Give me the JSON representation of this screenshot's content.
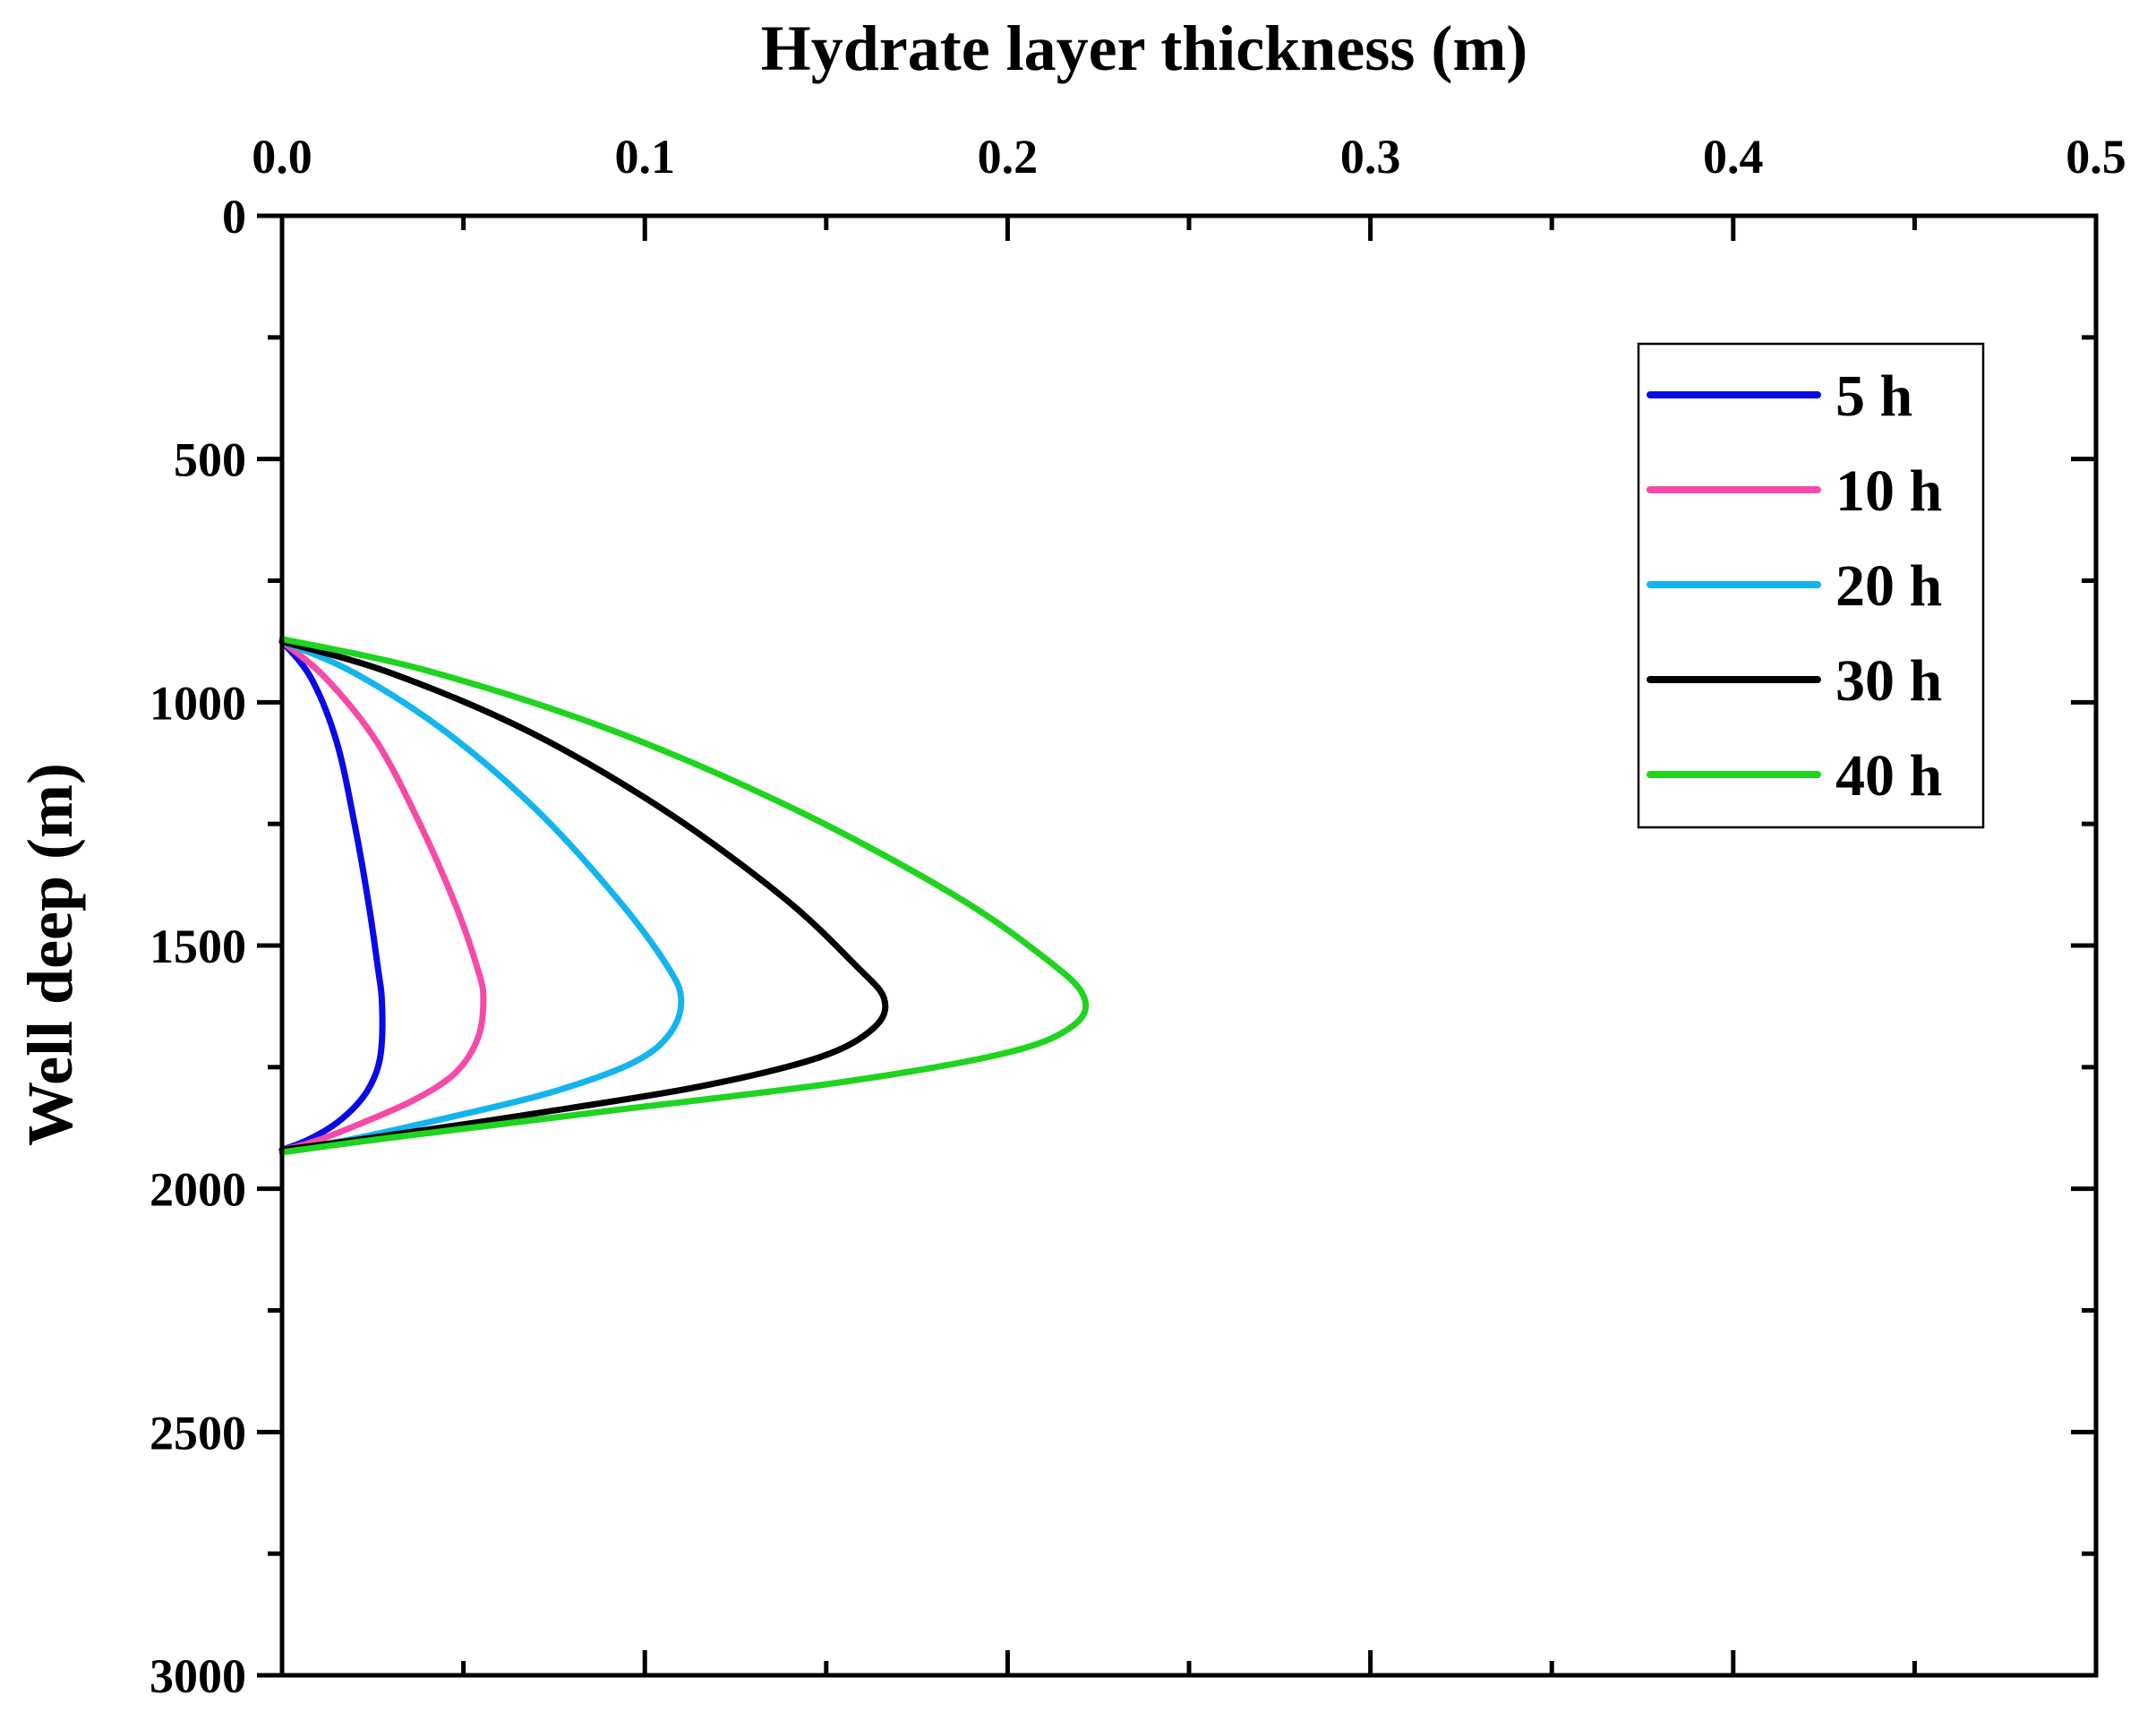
{
  "chart_data": {
    "type": "line",
    "xlabel": "Hydrate layer thickness (m)",
    "ylabel": "Well deep (m)",
    "xlim": [
      0,
      0.5
    ],
    "ylim": [
      0,
      3000
    ],
    "y_inverted": true,
    "x_axis_position": "top",
    "x_ticks": [
      0.0,
      0.1,
      0.2,
      0.3,
      0.4,
      0.5
    ],
    "x_tick_labels": [
      "0.0",
      "0.1",
      "0.2",
      "0.3",
      "0.4",
      "0.5"
    ],
    "x_minor_ticks": [
      0.05,
      0.15,
      0.25,
      0.35,
      0.45
    ],
    "y_ticks": [
      0,
      500,
      1000,
      1500,
      2000,
      2500,
      3000
    ],
    "y_tick_labels": [
      "0",
      "500",
      "1000",
      "1500",
      "2000",
      "2500",
      "3000"
    ],
    "y_minor_ticks": [
      250,
      750,
      1250,
      1750,
      2250,
      2750
    ],
    "grid": false,
    "legend_position": "top-right",
    "series": [
      {
        "name": "5 h",
        "color": "#0a0ae6",
        "x": [
          0.0,
          0.008,
          0.015,
          0.02,
          0.024,
          0.0265,
          0.0275,
          0.0275,
          0.026,
          0.022,
          0.015,
          0.007,
          0.0
        ],
        "y": [
          875,
          950,
          1080,
          1250,
          1420,
          1550,
          1610,
          1700,
          1760,
          1815,
          1865,
          1900,
          1920
        ]
      },
      {
        "name": "10 h",
        "color": "#f54aa8",
        "x": [
          0.0,
          0.012,
          0.026,
          0.038,
          0.048,
          0.054,
          0.0555,
          0.054,
          0.048,
          0.037,
          0.022,
          0.008,
          0.0
        ],
        "y": [
          875,
          950,
          1080,
          1250,
          1420,
          1550,
          1610,
          1690,
          1760,
          1815,
          1865,
          1905,
          1920
        ]
      },
      {
        "name": "20 h",
        "color": "#14b4ee",
        "x": [
          0.0,
          0.02,
          0.045,
          0.07,
          0.092,
          0.106,
          0.11,
          0.107,
          0.097,
          0.075,
          0.048,
          0.018,
          0.0
        ],
        "y": [
          875,
          940,
          1060,
          1220,
          1400,
          1540,
          1610,
          1680,
          1740,
          1800,
          1850,
          1900,
          1920
        ]
      },
      {
        "name": "30 h",
        "color": "#000000",
        "x": [
          0.0,
          0.03,
          0.068,
          0.105,
          0.138,
          0.158,
          0.166,
          0.163,
          0.148,
          0.115,
          0.07,
          0.025,
          0.0
        ],
        "y": [
          875,
          940,
          1060,
          1220,
          1400,
          1540,
          1610,
          1670,
          1730,
          1790,
          1845,
          1895,
          1920
        ]
      },
      {
        "name": "40 h",
        "color": "#1fd41f",
        "x": [
          0.0,
          0.04,
          0.09,
          0.14,
          0.185,
          0.211,
          0.221,
          0.218,
          0.2,
          0.155,
          0.09,
          0.03,
          0.0
        ],
        "y": [
          870,
          935,
          1055,
          1215,
          1395,
          1530,
          1605,
          1665,
          1720,
          1780,
          1840,
          1895,
          1925
        ]
      }
    ]
  }
}
